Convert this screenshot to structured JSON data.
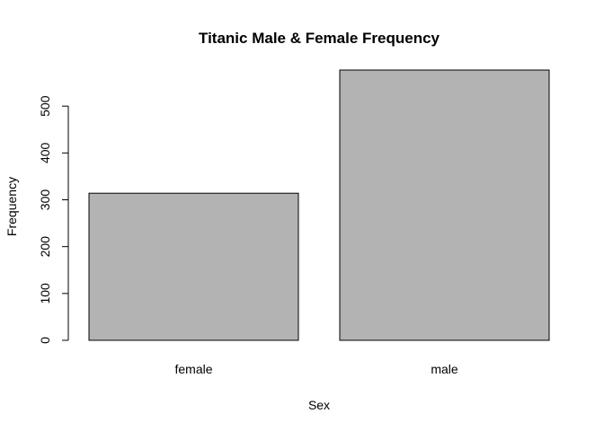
{
  "chart_data": {
    "type": "bar",
    "title": "Titanic Male & Female Frequency",
    "xlabel": "Sex",
    "ylabel": "Frequency",
    "categories": [
      "female",
      "male"
    ],
    "values": [
      314,
      577
    ],
    "ylim": [
      0,
      577
    ],
    "yticks": [
      0,
      100,
      200,
      300,
      400,
      500
    ],
    "grid": false,
    "bar_color": "#b3b3b3",
    "border_color": "#000000"
  }
}
